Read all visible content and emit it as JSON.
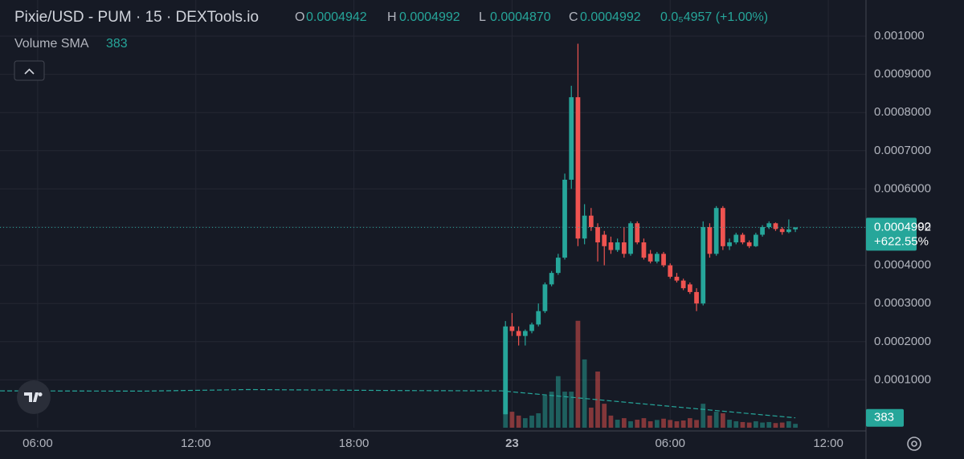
{
  "chart_data": {
    "type": "candlestick",
    "title": "Pixie/USD - PUM · 15 · DEXTools.io",
    "ohlc": [
      {
        "label": "O",
        "value": "0.0004942"
      },
      {
        "label": "H",
        "value": "0.0004992"
      },
      {
        "label": "L",
        "value": "0.0004870"
      },
      {
        "label": "C",
        "value": "0.0004992"
      }
    ],
    "change": "0.0₅4957 (+1.00%)",
    "volume_indicator": {
      "label": "Volume SMA",
      "value": "383"
    },
    "price_badge": {
      "price": "0.0004992",
      "change": "+622.55%"
    },
    "up_color": "#26a69a",
    "down_color": "#ef5350",
    "x": [
      23.75,
      24,
      24.25,
      24.5,
      24.75,
      25,
      25.25,
      25.5,
      25.75,
      26,
      26.25,
      26.5,
      26.75,
      27,
      27.25,
      27.5,
      27.75,
      28,
      28.25,
      28.5,
      28.75,
      29,
      29.25,
      29.5,
      29.75,
      30,
      30.25,
      30.5,
      30.75,
      31,
      31.25,
      31.5,
      31.75,
      32,
      32.25,
      32.5,
      32.75,
      33,
      33.25,
      33.5,
      33.75,
      34,
      34.25,
      34.5,
      34.75
    ],
    "open": [
      1e-05,
      0.00024,
      0.000228,
      0.000215,
      0.000228,
      0.000245,
      0.00028,
      0.00035,
      0.00038,
      0.00042,
      0.000624,
      0.00084,
      0.00047,
      0.00053,
      0.0005,
      0.00048,
      0.00046,
      0.00044,
      0.00046,
      0.00043,
      0.00051,
      0.00046,
      0.00043,
      0.00041,
      0.00043,
      0.0004,
      0.00037,
      0.00036,
      0.00035,
      0.00033,
      0.0003,
      0.0005,
      0.00043,
      0.00055,
      0.00045,
      0.00046,
      0.00048,
      0.00046,
      0.00045,
      0.00048,
      0.0005,
      0.00051,
      0.000495,
      0.000487,
      0.0004942
    ],
    "high": [
      0.000254,
      0.000275,
      0.00024,
      0.000232,
      0.00025,
      0.0003,
      0.000355,
      0.000385,
      0.00043,
      0.00064,
      0.00087,
      0.00098,
      0.00056,
      0.00055,
      0.00051,
      0.00049,
      0.000475,
      0.00047,
      0.0005,
      0.000515,
      0.000515,
      0.00047,
      0.00044,
      0.000435,
      0.000435,
      0.000405,
      0.00038,
      0.000365,
      0.000355,
      0.00034,
      0.000515,
      0.00051,
      0.000555,
      0.000555,
      0.00047,
      0.000485,
      0.000485,
      0.000465,
      0.000485,
      0.000505,
      0.000515,
      0.000512,
      0.0005,
      0.00052,
      0.0004992
    ],
    "low": [
      1e-05,
      0.000215,
      0.00019,
      0.00019,
      0.000222,
      0.00024,
      0.000275,
      0.000345,
      0.000375,
      0.000415,
      0.0006,
      0.00045,
      0.000455,
      0.00049,
      0.00041,
      0.0004,
      0.00043,
      0.000435,
      0.00042,
      0.000425,
      0.000455,
      0.000415,
      0.000405,
      0.000405,
      0.000395,
      0.000365,
      0.000355,
      0.000335,
      0.000325,
      0.00028,
      0.000295,
      0.00042,
      0.000425,
      0.00044,
      0.00044,
      0.000455,
      0.000455,
      0.000445,
      0.000448,
      0.000475,
      0.000495,
      0.00049,
      0.00048,
      0.000484,
      0.000487
    ],
    "close": [
      0.00024,
      0.000228,
      0.000215,
      0.000228,
      0.000245,
      0.00028,
      0.00035,
      0.00038,
      0.00042,
      0.000624,
      0.00084,
      0.00047,
      0.00053,
      0.0005,
      0.00046,
      0.00045,
      0.00044,
      0.00046,
      0.00043,
      0.00051,
      0.00046,
      0.00042,
      0.00041,
      0.00043,
      0.0004,
      0.00037,
      0.00036,
      0.00034,
      0.00033,
      0.0003,
      0.0005,
      0.00043,
      0.00055,
      0.00045,
      0.00046,
      0.00048,
      0.00046,
      0.00045,
      0.00048,
      0.0005,
      0.00051,
      0.000495,
      0.000487,
      0.000494,
      0.0004992
    ],
    "volume": [
      3900,
      620,
      470,
      370,
      470,
      560,
      1250,
      1400,
      2000,
      1400,
      1400,
      4150,
      2650,
      780,
      2180,
      930,
      470,
      310,
      370,
      250,
      310,
      370,
      250,
      300,
      350,
      300,
      250,
      280,
      370,
      300,
      930,
      470,
      620,
      560,
      310,
      250,
      220,
      200,
      250,
      200,
      220,
      180,
      200,
      250,
      150
    ],
    "sma": {
      "x": [
        4.57,
        10,
        14,
        20,
        23.6,
        34.75
      ],
      "values": [
        1430,
        1420,
        1480,
        1440,
        1430,
        383
      ]
    },
    "xlim": [
      4.57,
      37.43
    ],
    "xticks": [
      {
        "value": 6,
        "label": "06:00"
      },
      {
        "value": 12,
        "label": "12:00"
      },
      {
        "value": 18,
        "label": "18:00"
      },
      {
        "value": 24,
        "label": "23"
      },
      {
        "value": 30,
        "label": "06:00"
      },
      {
        "value": 36,
        "label": "12:00"
      }
    ],
    "ylim": [
      -2.52e-05,
      0.0010945
    ],
    "yticks": [
      {
        "value": 0.0001,
        "label": "0.0001000"
      },
      {
        "value": 0.0002,
        "label": "0.0002000"
      },
      {
        "value": 0.0003,
        "label": "0.0003000"
      },
      {
        "value": 0.0004,
        "label": "0.0004000"
      },
      {
        "value": 0.0005,
        "label": "0.0005000"
      },
      {
        "value": 0.0006,
        "label": "0.0006000"
      },
      {
        "value": 0.0007,
        "label": "0.0007000"
      },
      {
        "value": 0.0008,
        "label": "0.0008000"
      },
      {
        "value": 0.0009,
        "label": "0.0009000"
      },
      {
        "value": 0.001,
        "label": "0.001000"
      }
    ],
    "y2lim": [
      0,
      16600
    ],
    "grid": true
  }
}
